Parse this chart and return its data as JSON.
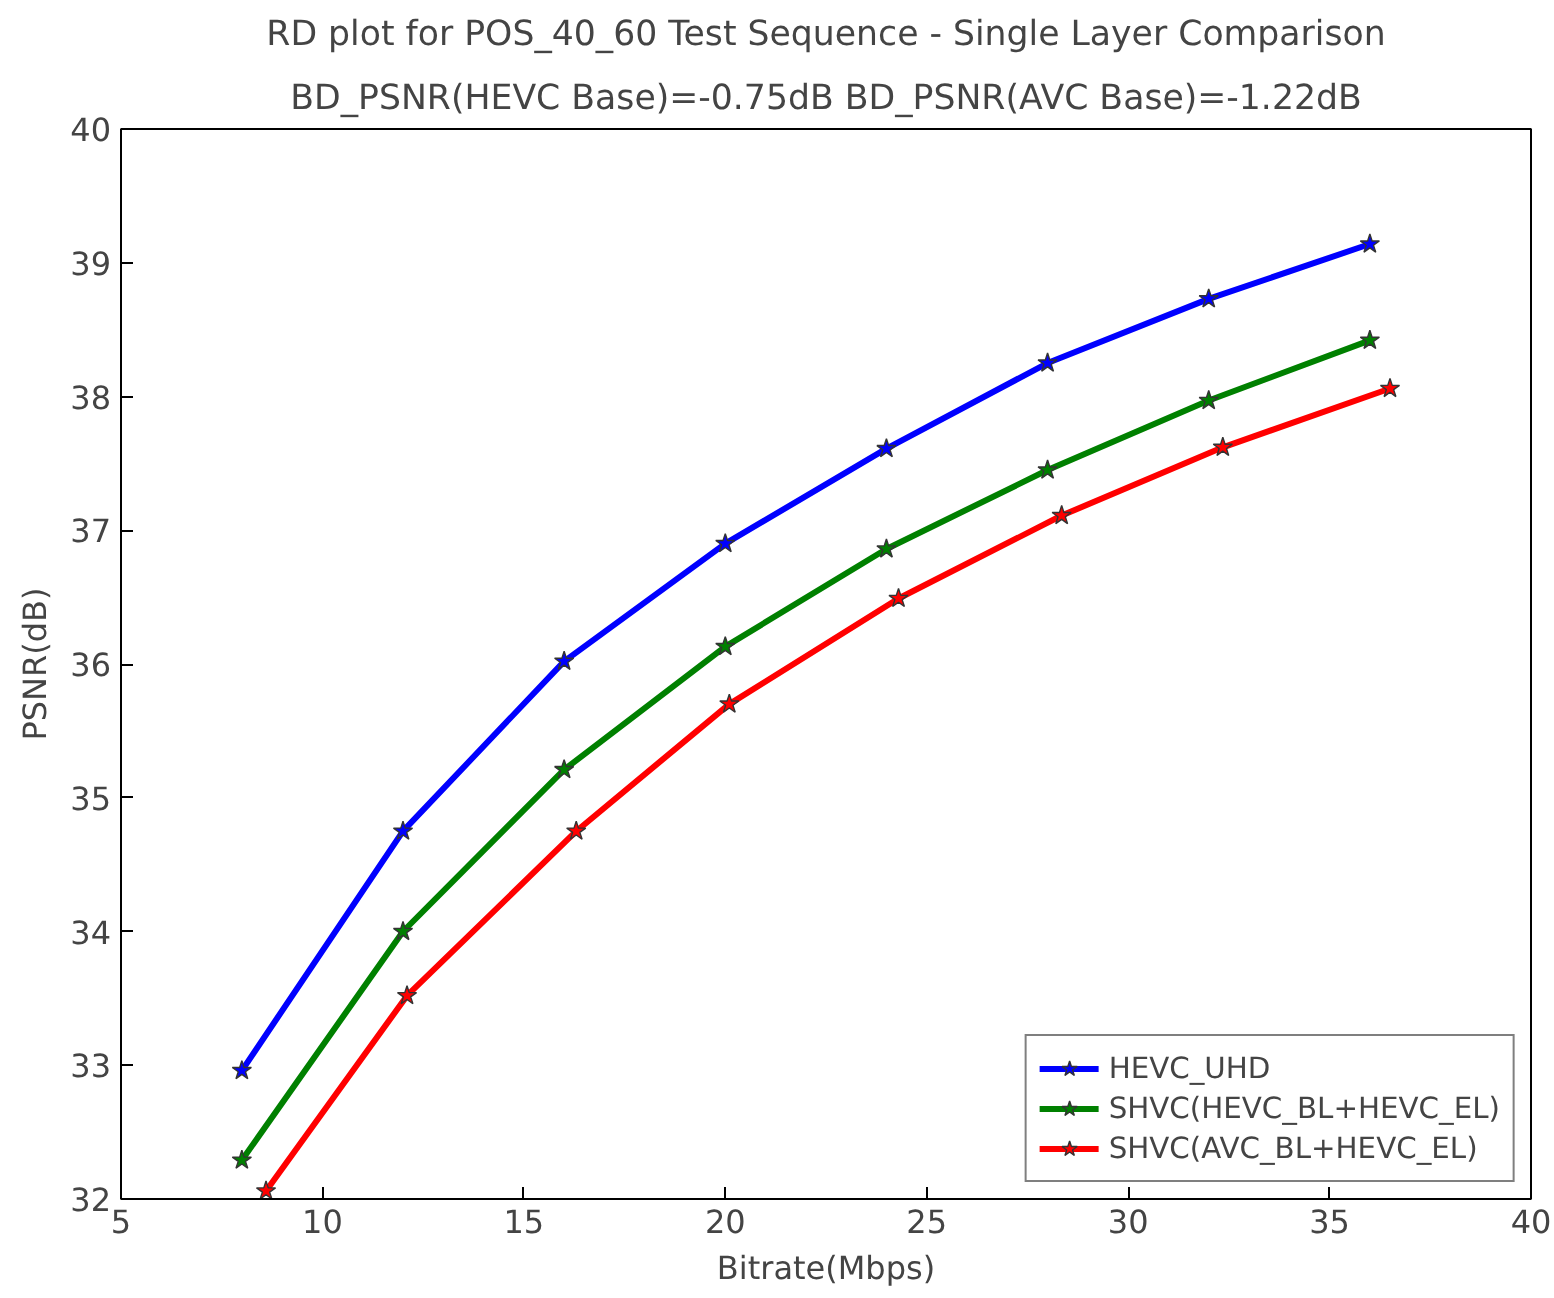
{
  "chart_data": {
    "type": "line",
    "title": "RD plot for POS_40_60 Test Sequence - Single Layer Comparison",
    "subtitle": "BD_PSNR(HEVC Base)=-0.75dB BD_PSNR(AVC Base)=-1.22dB",
    "xlabel": "Bitrate(Mbps)",
    "ylabel": "PSNR(dB)",
    "series": [
      {
        "name": "HEVC_UHD",
        "color": "#0000ff",
        "x": [
          8,
          12,
          16,
          20,
          24,
          28,
          32,
          36
        ],
        "values": [
          32.96,
          34.75,
          36.02,
          36.9,
          37.61,
          38.25,
          38.73,
          39.14
        ]
      },
      {
        "name": "SHVC(HEVC_BL+HEVC_EL)",
        "color": "#008000",
        "x": [
          8,
          12,
          16,
          20,
          24,
          28,
          32,
          36
        ],
        "values": [
          32.29,
          34.0,
          35.21,
          36.13,
          36.86,
          37.45,
          37.97,
          38.42
        ]
      },
      {
        "name": "SHVC(AVC_BL+HEVC_EL)",
        "color": "#ff0000",
        "x": [
          8.6,
          12.1,
          16.3,
          20.1,
          24.3,
          28.35,
          32.35,
          36.5
        ],
        "values": [
          32.06,
          33.52,
          34.75,
          35.7,
          36.49,
          37.11,
          37.62,
          38.06
        ]
      }
    ],
    "xlim": [
      5,
      40
    ],
    "xticks": [
      5,
      10,
      15,
      20,
      25,
      30,
      35,
      40
    ],
    "ylim": [
      32,
      40
    ],
    "yticks": [
      32,
      33,
      34,
      35,
      36,
      37,
      38,
      39,
      40
    ],
    "grid": false,
    "legend": "bottom right",
    "marker": "star",
    "line_style": "solid"
  }
}
